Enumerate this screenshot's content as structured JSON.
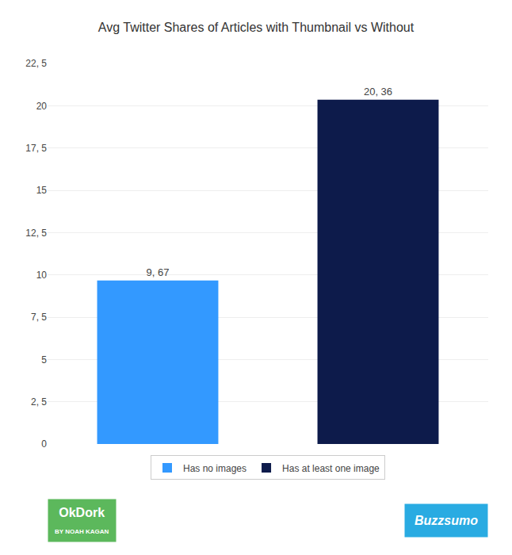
{
  "chart_data": {
    "type": "bar",
    "title": "Avg Twitter Shares of Articles with Thumbnail vs Without",
    "categories": [
      "Has no images",
      "Has at least one image"
    ],
    "values": [
      9.67,
      20.36
    ],
    "value_labels": [
      "9, 67",
      "20, 36"
    ],
    "colors": [
      "#3399ff",
      "#0d1b4b"
    ],
    "ylim": [
      0,
      22.5
    ],
    "yticks": [
      0,
      {
        "value": 2.5,
        "label": "2, 5"
      },
      5,
      {
        "value": 7.5,
        "label": "7, 5"
      },
      10,
      {
        "value": 12.5,
        "label": "12, 5"
      },
      15,
      {
        "value": 17.5,
        "label": "17, 5"
      },
      20,
      {
        "value": 22.5,
        "label": "22, 5"
      }
    ],
    "grid": true,
    "legend": "bottom",
    "data_labels": true,
    "tick_labels": "y",
    "annotations": [
      "OkDork",
      "BY NOAH KAGAN",
      "Buzzsumo"
    ]
  }
}
